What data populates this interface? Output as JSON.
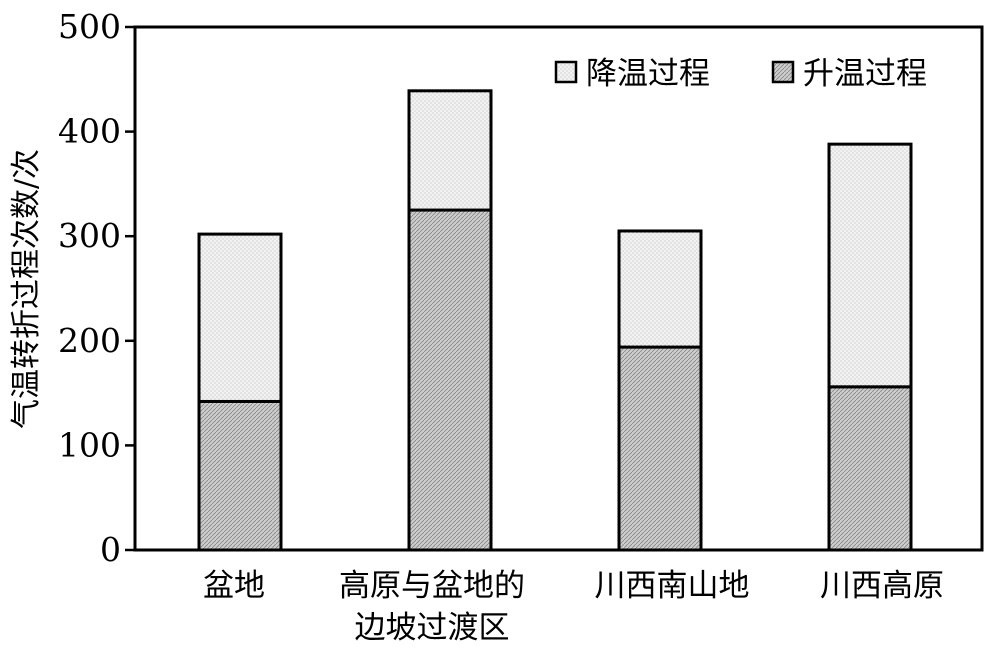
{
  "chart_data": {
    "type": "bar",
    "stacked": true,
    "categories": [
      [
        "盆地"
      ],
      [
        "高原与盆地的",
        "边坡过渡区"
      ],
      [
        "川西南山地"
      ],
      [
        "川西高原"
      ]
    ],
    "series": [
      {
        "name": "升温过程",
        "values": [
          142,
          325,
          194,
          156
        ],
        "color": "#c8c8c8",
        "pattern": "hatch-dense"
      },
      {
        "name": "降温过程",
        "values": [
          160,
          114,
          111,
          232
        ],
        "color": "#eeeeee",
        "pattern": "dots-light"
      }
    ],
    "legend_order": [
      1,
      0
    ],
    "legend_position": "top-right",
    "ylabel": "气温转折过程次数/次",
    "xlabel": "",
    "ylim": [
      0,
      500
    ],
    "yticks": [
      0,
      100,
      200,
      300,
      400,
      500
    ],
    "grid": false
  }
}
